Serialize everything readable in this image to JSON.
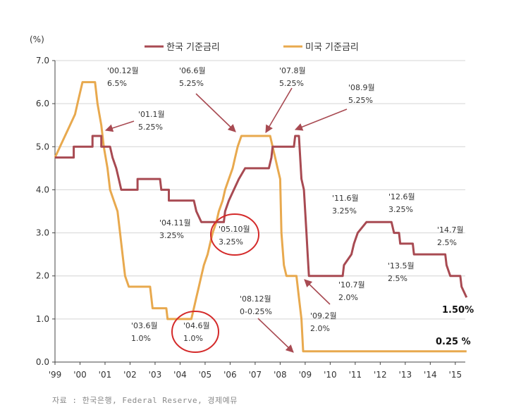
{
  "chart_data": {
    "type": "line",
    "unit_label": "(%)",
    "ylim": [
      0,
      7
    ],
    "y_ticks": [
      "0.0",
      "1.0",
      "2.0",
      "3.0",
      "4.0",
      "5.0",
      "6.0",
      "7.0"
    ],
    "x_ticks": [
      "'99",
      "'00",
      "'01",
      "'02",
      "'03",
      "'04",
      "'05",
      "'06",
      "'07",
      "'08",
      "'09",
      "'10",
      "'11",
      "'12",
      "'13",
      "'14",
      "'15"
    ],
    "xlim": [
      1999,
      2015.4
    ],
    "grid": "horizontal",
    "legend": [
      "한국 기준금리",
      "미국 기준금리"
    ],
    "series": [
      {
        "name": "한국 기준금리",
        "color": "#a84a52",
        "points": [
          [
            1999.0,
            4.75
          ],
          [
            1999.75,
            4.75
          ],
          [
            1999.75,
            5.0
          ],
          [
            2000.5,
            5.0
          ],
          [
            2000.5,
            5.25
          ],
          [
            2000.85,
            5.25
          ],
          [
            2000.85,
            5.0
          ],
          [
            2001.2,
            5.0
          ],
          [
            2001.3,
            4.75
          ],
          [
            2001.45,
            4.5
          ],
          [
            2001.55,
            4.25
          ],
          [
            2001.65,
            4.0
          ],
          [
            2002.3,
            4.0
          ],
          [
            2002.3,
            4.25
          ],
          [
            2003.2,
            4.25
          ],
          [
            2003.25,
            4.0
          ],
          [
            2003.55,
            4.0
          ],
          [
            2003.55,
            3.75
          ],
          [
            2004.55,
            3.75
          ],
          [
            2004.65,
            3.5
          ],
          [
            2004.85,
            3.25
          ],
          [
            2005.75,
            3.25
          ],
          [
            2005.8,
            3.5
          ],
          [
            2005.95,
            3.75
          ],
          [
            2006.15,
            4.0
          ],
          [
            2006.35,
            4.25
          ],
          [
            2006.6,
            4.5
          ],
          [
            2007.55,
            4.5
          ],
          [
            2007.65,
            4.75
          ],
          [
            2007.7,
            5.0
          ],
          [
            2008.55,
            5.0
          ],
          [
            2008.6,
            5.25
          ],
          [
            2008.75,
            5.25
          ],
          [
            2008.85,
            4.25
          ],
          [
            2008.95,
            4.0
          ],
          [
            2009.05,
            3.0
          ],
          [
            2009.1,
            2.5
          ],
          [
            2009.15,
            2.0
          ],
          [
            2010.5,
            2.0
          ],
          [
            2010.55,
            2.25
          ],
          [
            2010.85,
            2.5
          ],
          [
            2010.95,
            2.75
          ],
          [
            2011.1,
            3.0
          ],
          [
            2011.45,
            3.25
          ],
          [
            2012.45,
            3.25
          ],
          [
            2012.55,
            3.0
          ],
          [
            2012.75,
            3.0
          ],
          [
            2012.8,
            2.75
          ],
          [
            2013.3,
            2.75
          ],
          [
            2013.35,
            2.5
          ],
          [
            2014.6,
            2.5
          ],
          [
            2014.65,
            2.25
          ],
          [
            2014.8,
            2.0
          ],
          [
            2015.2,
            2.0
          ],
          [
            2015.25,
            1.75
          ],
          [
            2015.45,
            1.5
          ]
        ]
      },
      {
        "name": "미국 기준금리",
        "color": "#e8a94e",
        "points": [
          [
            1999.0,
            4.75
          ],
          [
            1999.2,
            5.0
          ],
          [
            1999.4,
            5.25
          ],
          [
            1999.6,
            5.5
          ],
          [
            1999.8,
            5.75
          ],
          [
            1999.9,
            6.0
          ],
          [
            2000.1,
            6.5
          ],
          [
            2000.6,
            6.5
          ],
          [
            2000.7,
            6.0
          ],
          [
            2000.85,
            5.5
          ],
          [
            2000.95,
            5.0
          ],
          [
            2001.1,
            4.5
          ],
          [
            2001.2,
            4.0
          ],
          [
            2001.35,
            3.75
          ],
          [
            2001.5,
            3.5
          ],
          [
            2001.6,
            3.0
          ],
          [
            2001.7,
            2.5
          ],
          [
            2001.8,
            2.0
          ],
          [
            2001.95,
            1.75
          ],
          [
            2002.8,
            1.75
          ],
          [
            2002.9,
            1.25
          ],
          [
            2003.45,
            1.25
          ],
          [
            2003.5,
            1.0
          ],
          [
            2004.45,
            1.0
          ],
          [
            2004.55,
            1.25
          ],
          [
            2004.65,
            1.5
          ],
          [
            2004.75,
            1.75
          ],
          [
            2004.85,
            2.0
          ],
          [
            2004.95,
            2.25
          ],
          [
            2005.1,
            2.5
          ],
          [
            2005.2,
            2.75
          ],
          [
            2005.3,
            3.0
          ],
          [
            2005.45,
            3.25
          ],
          [
            2005.55,
            3.5
          ],
          [
            2005.7,
            3.75
          ],
          [
            2005.8,
            4.0
          ],
          [
            2005.95,
            4.25
          ],
          [
            2006.1,
            4.5
          ],
          [
            2006.2,
            4.75
          ],
          [
            2006.3,
            5.0
          ],
          [
            2006.45,
            5.25
          ],
          [
            2007.6,
            5.25
          ],
          [
            2007.7,
            5.0
          ],
          [
            2007.8,
            4.75
          ],
          [
            2007.9,
            4.5
          ],
          [
            2008.0,
            4.25
          ],
          [
            2008.05,
            3.0
          ],
          [
            2008.15,
            2.25
          ],
          [
            2008.25,
            2.0
          ],
          [
            2008.65,
            2.0
          ],
          [
            2008.75,
            1.5
          ],
          [
            2008.85,
            1.0
          ],
          [
            2008.92,
            0.25
          ],
          [
            2015.45,
            0.25
          ]
        ]
      }
    ],
    "annotations": [
      {
        "line1": "'00.12월",
        "line2": "6.5%"
      },
      {
        "line1": "'01.1월",
        "line2": "5.25%"
      },
      {
        "line1": "'06.6월",
        "line2": "5.25%"
      },
      {
        "line1": "'07.8월",
        "line2": "5.25%"
      },
      {
        "line1": "'08.9월",
        "line2": "5.25%"
      },
      {
        "line1": "'11.6월",
        "line2": "3.25%"
      },
      {
        "line1": "'12.6월",
        "line2": "3.25%"
      },
      {
        "line1": "'14.7월",
        "line2": "2.5%"
      },
      {
        "line1": "'04.11월",
        "line2": "3.25%"
      },
      {
        "line1": "'05.10월",
        "line2": "3.25%"
      },
      {
        "line1": "'13.5월",
        "line2": "2.5%"
      },
      {
        "line1": "'10.7월",
        "line2": "2.0%"
      },
      {
        "line1": "'08.12월",
        "line2": "0-0.25%"
      },
      {
        "line1": "'09.2월",
        "line2": "2.0%"
      },
      {
        "line1": "'03.6월",
        "line2": "1.0%"
      },
      {
        "line1": "'04.6월",
        "line2": "1.0%"
      }
    ],
    "end_labels": [
      "1.50%",
      "0.25 %"
    ]
  },
  "source": "자료 : 한국은행, Federal Reserve, 경제예뮤"
}
